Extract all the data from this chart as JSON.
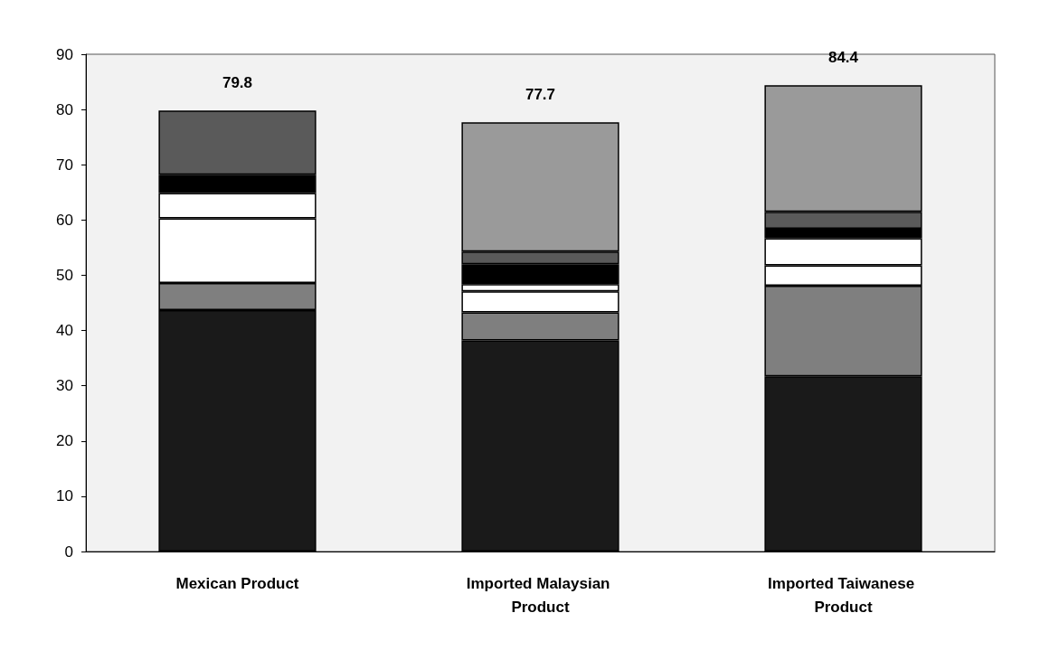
{
  "chart_data": {
    "type": "bar",
    "stacked": true,
    "categories": [
      "Mexican Product",
      "Imported Malaysian Product",
      "Imported Taiwanese Product"
    ],
    "series": [
      {
        "color": "#1a1a1a",
        "values": [
          43.7,
          38.2,
          31.7
        ]
      },
      {
        "color": "#7f7f7f",
        "values": [
          4.9,
          5.1,
          16.4
        ]
      },
      {
        "color": "#ffffff",
        "values": [
          11.7,
          3.8,
          3.7
        ]
      },
      {
        "color": "#ffffff",
        "values": [
          4.6,
          1.3,
          4.9
        ]
      },
      {
        "color": "#000000",
        "values": [
          3.3,
          3.6,
          1.7
        ]
      },
      {
        "color": "#5a5a5a",
        "values": [
          11.6,
          2.3,
          3.1
        ]
      },
      {
        "color": "#9a9a9a",
        "values": [
          null,
          23.4,
          22.9
        ]
      }
    ],
    "totals": [
      "79.8",
      "77.7",
      "84.4"
    ],
    "ylim": [
      0,
      90
    ],
    "yticks": [
      0,
      10,
      20,
      30,
      40,
      50,
      60,
      70,
      80,
      90
    ],
    "grid": false
  }
}
